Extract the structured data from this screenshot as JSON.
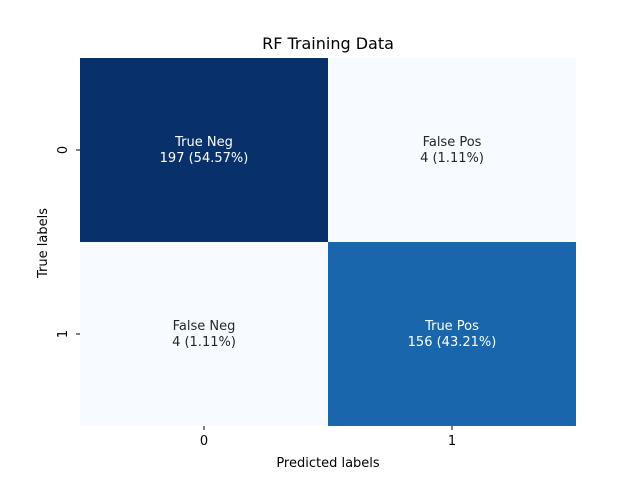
{
  "chart_data": {
    "type": "heatmap",
    "title": "RF Training Data",
    "xlabel": "Predicted labels",
    "ylabel": "True labels",
    "x_categories": [
      "0",
      "1"
    ],
    "y_categories": [
      "0",
      "1"
    ],
    "colormap": "Blues",
    "colorbar": false,
    "cells": [
      {
        "row": 0,
        "col": 0,
        "name": "True Neg",
        "count": 197,
        "percent_label": "(54.57%)",
        "label_line1": "True Neg",
        "label_line2": "197 (54.57%)",
        "color": "#08306b",
        "text_color": "#ffffff"
      },
      {
        "row": 0,
        "col": 1,
        "name": "False Pos",
        "count": 4,
        "percent_label": "(1.11%)",
        "label_line1": "False Pos",
        "label_line2": "4 (1.11%)",
        "color": "#f7fbff",
        "text_color": "#262626"
      },
      {
        "row": 1,
        "col": 0,
        "name": "False Neg",
        "count": 4,
        "percent_label": "(1.11%)",
        "label_line1": "False Neg",
        "label_line2": "4 (1.11%)",
        "color": "#f7fbff",
        "text_color": "#262626"
      },
      {
        "row": 1,
        "col": 1,
        "name": "True Pos",
        "count": 156,
        "percent_label": "(43.21%)",
        "label_line1": "True Pos",
        "label_line2": "156 (43.21%)",
        "color": "#1966ad",
        "text_color": "#ffffff"
      }
    ]
  }
}
